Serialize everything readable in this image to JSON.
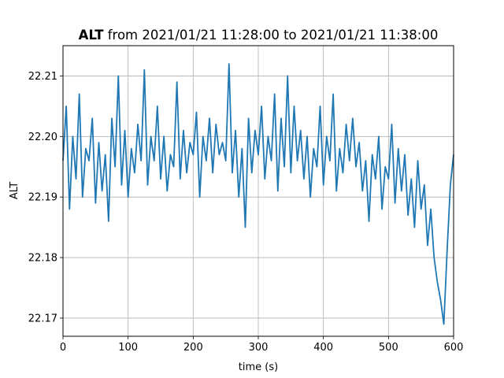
{
  "chart_data": {
    "type": "line",
    "title": {
      "bold": "ALT",
      "rest": " from 2021/01/21 11:28:00 to 2021/01/21 11:38:00"
    },
    "xlabel": "time (s)",
    "ylabel": "ALT",
    "xlim": [
      0,
      600
    ],
    "ylim": [
      22.167,
      22.215
    ],
    "xticks": [
      0,
      100,
      200,
      300,
      400,
      500,
      600
    ],
    "xtick_labels": [
      "0",
      "100",
      "200",
      "300",
      "400",
      "500",
      "600"
    ],
    "yticks": [
      22.17,
      22.18,
      22.19,
      22.2,
      22.21
    ],
    "ytick_labels": [
      "22.17",
      "22.18",
      "22.19",
      "22.20",
      "22.21"
    ],
    "grid": true,
    "series": [
      {
        "color": "#1f77b4",
        "x": [
          0,
          5,
          10,
          15,
          20,
          25,
          30,
          35,
          40,
          45,
          50,
          55,
          60,
          65,
          70,
          75,
          80,
          85,
          90,
          95,
          100,
          105,
          110,
          115,
          120,
          125,
          130,
          135,
          140,
          145,
          150,
          155,
          160,
          165,
          170,
          175,
          180,
          185,
          190,
          195,
          200,
          205,
          210,
          215,
          220,
          225,
          230,
          235,
          240,
          245,
          250,
          255,
          260,
          265,
          270,
          275,
          280,
          285,
          290,
          295,
          300,
          305,
          310,
          315,
          320,
          325,
          330,
          335,
          340,
          345,
          350,
          355,
          360,
          365,
          370,
          375,
          380,
          385,
          390,
          395,
          400,
          405,
          410,
          415,
          420,
          425,
          430,
          435,
          440,
          445,
          450,
          455,
          460,
          465,
          470,
          475,
          480,
          485,
          490,
          495,
          500,
          505,
          510,
          515,
          520,
          525,
          530,
          535,
          540,
          545,
          550,
          555,
          560,
          565,
          570,
          575,
          580,
          585,
          590,
          595,
          600
        ],
        "y": [
          22.196,
          22.205,
          22.188,
          22.2,
          22.193,
          22.207,
          22.19,
          22.198,
          22.196,
          22.203,
          22.189,
          22.199,
          22.191,
          22.197,
          22.186,
          22.203,
          22.195,
          22.21,
          22.192,
          22.201,
          22.19,
          22.198,
          22.194,
          22.202,
          22.196,
          22.211,
          22.192,
          22.2,
          22.196,
          22.205,
          22.193,
          22.2,
          22.191,
          22.197,
          22.195,
          22.209,
          22.193,
          22.201,
          22.194,
          22.199,
          22.197,
          22.204,
          22.19,
          22.2,
          22.196,
          22.203,
          22.194,
          22.202,
          22.197,
          22.199,
          22.196,
          22.212,
          22.194,
          22.201,
          22.19,
          22.198,
          22.185,
          22.203,
          22.194,
          22.201,
          22.197,
          22.205,
          22.193,
          22.2,
          22.196,
          22.207,
          22.191,
          22.203,
          22.195,
          22.21,
          22.194,
          22.205,
          22.196,
          22.201,
          22.193,
          22.2,
          22.19,
          22.198,
          22.195,
          22.205,
          22.192,
          22.2,
          22.196,
          22.207,
          22.191,
          22.198,
          22.194,
          22.202,
          22.196,
          22.203,
          22.195,
          22.199,
          22.191,
          22.196,
          22.186,
          22.197,
          22.193,
          22.2,
          22.188,
          22.195,
          22.193,
          22.202,
          22.189,
          22.198,
          22.191,
          22.197,
          22.187,
          22.193,
          22.185,
          22.196,
          22.188,
          22.192,
          22.182,
          22.188,
          22.18,
          22.176,
          22.173,
          22.169,
          22.181,
          22.192,
          22.197
        ]
      }
    ]
  }
}
